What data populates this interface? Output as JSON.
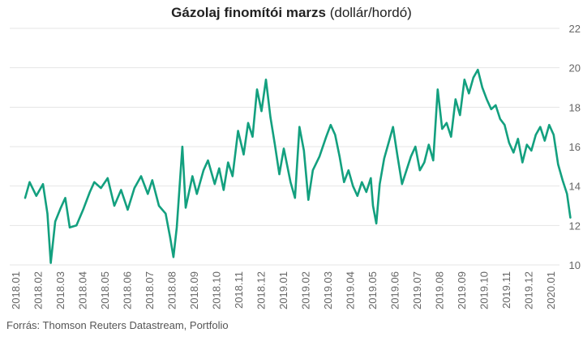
{
  "title": {
    "bold": "Gázolaj finomítói marzs",
    "normal": " (dollár/hordó)"
  },
  "source": "Forrás: Thomson Reuters Datastream, Portfolio",
  "colors": {
    "line": "#13a07f",
    "grid": "#e4e4e4",
    "text": "#666666"
  },
  "chart_data": {
    "type": "line",
    "ylim": [
      10,
      22
    ],
    "yticks": [
      10,
      12,
      14,
      16,
      18,
      20,
      22
    ],
    "x_tick_labels": [
      "2018.01",
      "2018.02",
      "2018.03",
      "2018.04",
      "2018.05",
      "2018.06",
      "2018.07",
      "2018.08",
      "2018.09",
      "2018.10",
      "2018.11",
      "2018.12",
      "2019.01",
      "2019.02",
      "2019.03",
      "2019.04",
      "2019.05",
      "2019.06",
      "2019.07",
      "2019.08",
      "2019.09",
      "2019.10",
      "2019.11",
      "2019.12",
      "2020.01"
    ],
    "grid": "horizontal",
    "y_axis_side": "right",
    "series": [
      {
        "values": [
          [
            0.4,
            13.4
          ],
          [
            0.6,
            14.2
          ],
          [
            0.9,
            13.5
          ],
          [
            1.2,
            14.1
          ],
          [
            1.4,
            12.6
          ],
          [
            1.55,
            10.1
          ],
          [
            1.75,
            12.2
          ],
          [
            2.0,
            12.9
          ],
          [
            2.2,
            13.4
          ],
          [
            2.4,
            11.9
          ],
          [
            2.7,
            12.0
          ],
          [
            3.0,
            12.8
          ],
          [
            3.3,
            13.7
          ],
          [
            3.5,
            14.2
          ],
          [
            3.8,
            13.9
          ],
          [
            4.1,
            14.4
          ],
          [
            4.4,
            13.0
          ],
          [
            4.7,
            13.8
          ],
          [
            5.0,
            12.8
          ],
          [
            5.3,
            13.9
          ],
          [
            5.6,
            14.5
          ],
          [
            5.9,
            13.6
          ],
          [
            6.1,
            14.3
          ],
          [
            6.4,
            13.0
          ],
          [
            6.7,
            12.6
          ],
          [
            6.9,
            11.4
          ],
          [
            7.05,
            10.4
          ],
          [
            7.2,
            11.9
          ],
          [
            7.45,
            16.0
          ],
          [
            7.6,
            12.9
          ],
          [
            7.9,
            14.5
          ],
          [
            8.1,
            13.6
          ],
          [
            8.4,
            14.8
          ],
          [
            8.6,
            15.3
          ],
          [
            8.9,
            14.1
          ],
          [
            9.1,
            14.9
          ],
          [
            9.3,
            13.8
          ],
          [
            9.5,
            15.2
          ],
          [
            9.7,
            14.5
          ],
          [
            9.95,
            16.8
          ],
          [
            10.2,
            15.6
          ],
          [
            10.4,
            17.2
          ],
          [
            10.6,
            16.5
          ],
          [
            10.8,
            18.9
          ],
          [
            11.0,
            17.8
          ],
          [
            11.2,
            19.4
          ],
          [
            11.4,
            17.5
          ],
          [
            11.6,
            16.1
          ],
          [
            11.8,
            14.6
          ],
          [
            12.0,
            15.9
          ],
          [
            12.3,
            14.2
          ],
          [
            12.5,
            13.4
          ],
          [
            12.7,
            17.0
          ],
          [
            12.9,
            15.8
          ],
          [
            13.1,
            13.3
          ],
          [
            13.3,
            14.8
          ],
          [
            13.6,
            15.5
          ],
          [
            13.9,
            16.5
          ],
          [
            14.1,
            17.1
          ],
          [
            14.3,
            16.6
          ],
          [
            14.5,
            15.5
          ],
          [
            14.7,
            14.2
          ],
          [
            14.9,
            14.8
          ],
          [
            15.1,
            14.0
          ],
          [
            15.3,
            13.5
          ],
          [
            15.5,
            14.2
          ],
          [
            15.7,
            13.7
          ],
          [
            15.9,
            14.4
          ],
          [
            16.0,
            13.0
          ],
          [
            16.15,
            12.1
          ],
          [
            16.3,
            14.1
          ],
          [
            16.5,
            15.4
          ],
          [
            16.7,
            16.2
          ],
          [
            16.9,
            17.0
          ],
          [
            17.1,
            15.5
          ],
          [
            17.3,
            14.1
          ],
          [
            17.5,
            14.8
          ],
          [
            17.7,
            15.5
          ],
          [
            17.9,
            16.0
          ],
          [
            18.1,
            14.8
          ],
          [
            18.3,
            15.2
          ],
          [
            18.5,
            16.1
          ],
          [
            18.7,
            15.3
          ],
          [
            18.9,
            18.9
          ],
          [
            19.1,
            16.9
          ],
          [
            19.3,
            17.2
          ],
          [
            19.5,
            16.5
          ],
          [
            19.7,
            18.4
          ],
          [
            19.9,
            17.6
          ],
          [
            20.1,
            19.4
          ],
          [
            20.3,
            18.7
          ],
          [
            20.5,
            19.5
          ],
          [
            20.7,
            19.9
          ],
          [
            20.9,
            19.0
          ],
          [
            21.1,
            18.4
          ],
          [
            21.3,
            17.9
          ],
          [
            21.5,
            18.1
          ],
          [
            21.7,
            17.4
          ],
          [
            21.9,
            17.1
          ],
          [
            22.1,
            16.2
          ],
          [
            22.3,
            15.7
          ],
          [
            22.5,
            16.4
          ],
          [
            22.7,
            15.2
          ],
          [
            22.9,
            16.1
          ],
          [
            23.1,
            15.8
          ],
          [
            23.3,
            16.6
          ],
          [
            23.5,
            17.0
          ],
          [
            23.7,
            16.3
          ],
          [
            23.9,
            17.1
          ],
          [
            24.1,
            16.6
          ],
          [
            24.3,
            15.1
          ],
          [
            24.5,
            14.3
          ],
          [
            24.7,
            13.6
          ],
          [
            24.85,
            12.4
          ]
        ]
      }
    ]
  }
}
